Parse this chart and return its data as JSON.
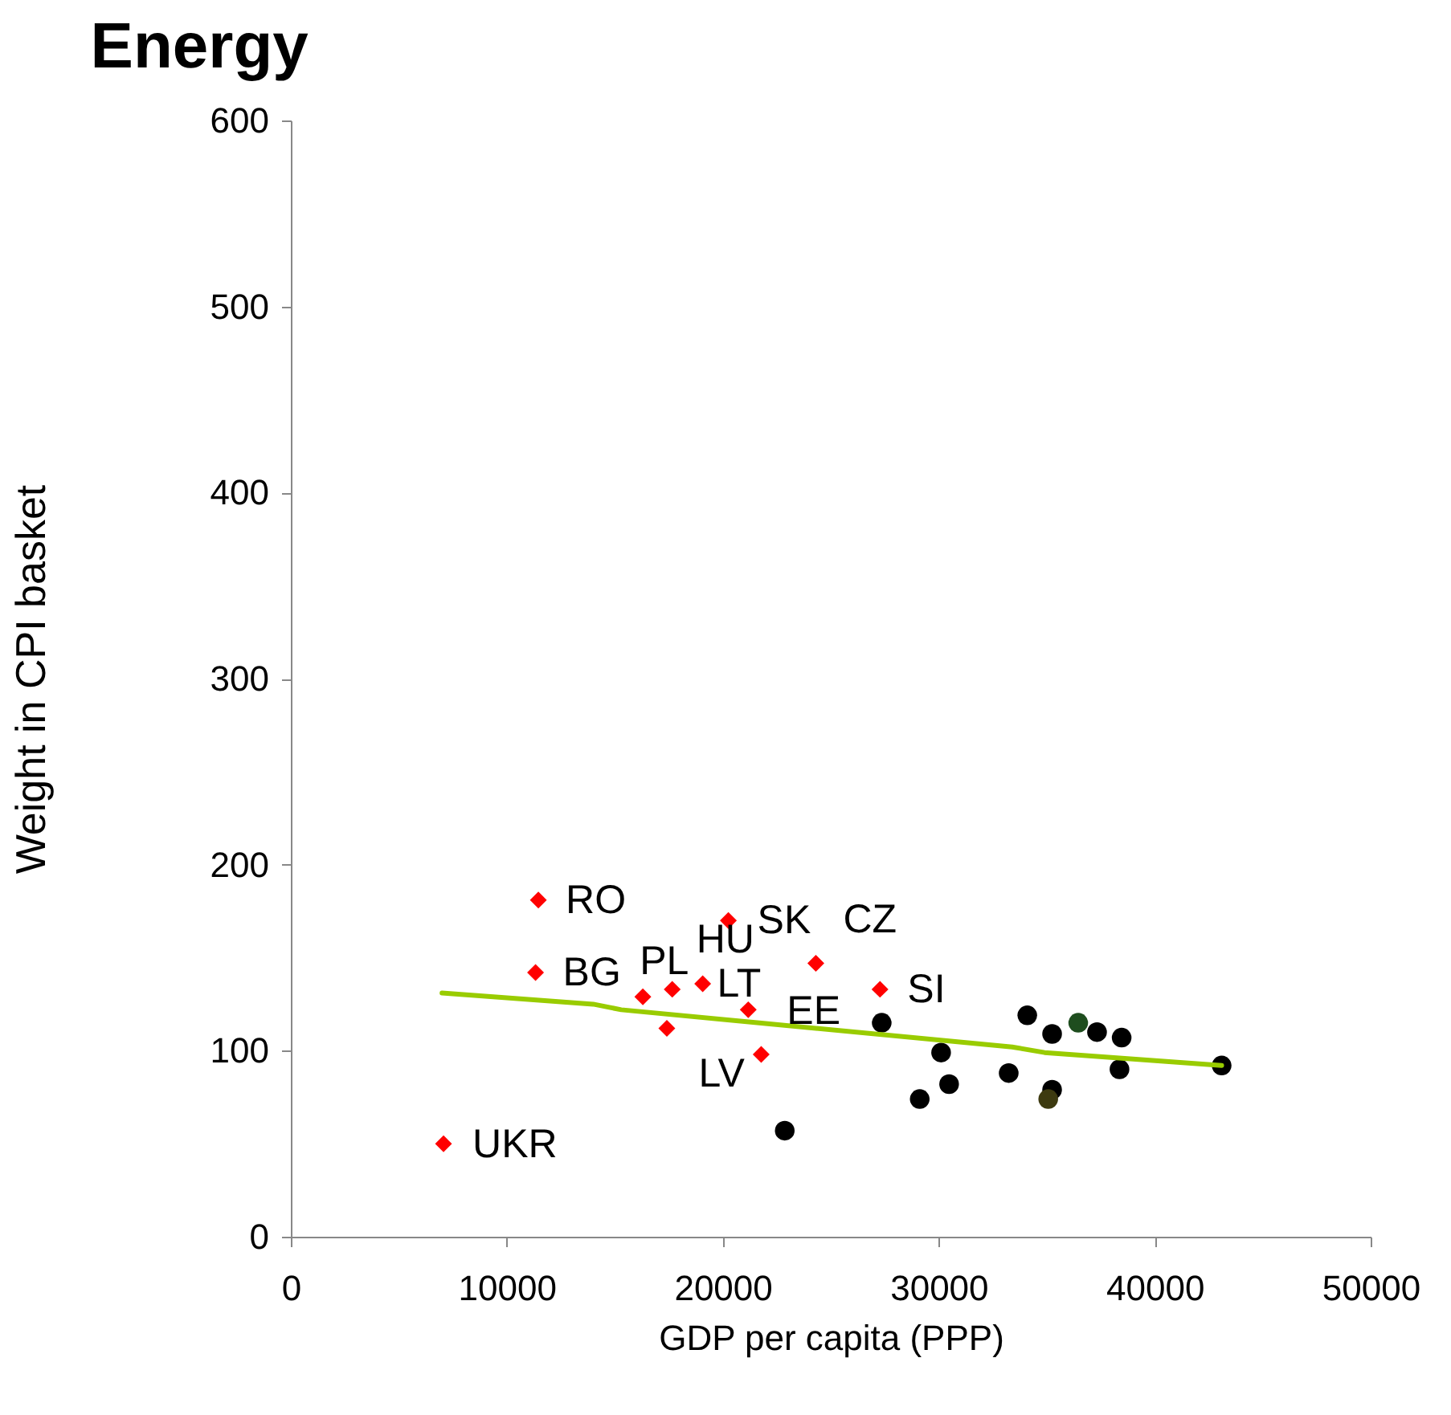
{
  "chart_data": {
    "type": "scatter",
    "title": "Energy",
    "xlabel": "GDP per capita (PPP)",
    "ylabel": "Weight in CPI basket",
    "xlim": [
      0,
      50000
    ],
    "xticks": [
      0,
      10000,
      20000,
      30000,
      40000,
      50000
    ],
    "ylim": [
      0,
      600
    ],
    "yticks": [
      0,
      100,
      200,
      300,
      400,
      500,
      600
    ],
    "grid": false,
    "series": [
      {
        "type": "scatter",
        "marker": "diamond",
        "color": "#ff0000",
        "x": [
          11460,
          11330,
          7070,
          16300,
          17660,
          17410,
          19070,
          20260,
          21180,
          21780,
          24310,
          27280
        ],
        "values": [
          181,
          142,
          50,
          129,
          133,
          112,
          136,
          170,
          122,
          98,
          147,
          133
        ]
      },
      {
        "type": "scatter",
        "marker": "circle",
        "color": "#000000",
        "colors": [
          null,
          null,
          null,
          null,
          null,
          null,
          null,
          "#1e4d1e",
          null,
          null,
          null,
          null,
          "#3d3a10",
          null,
          null
        ],
        "x": [
          27360,
          30110,
          30480,
          29120,
          22870,
          34100,
          35250,
          36460,
          37330,
          38470,
          33240,
          35250,
          35070,
          38370,
          43100
        ],
        "values": [
          115,
          99,
          82,
          74,
          57,
          119,
          109,
          115,
          110,
          107,
          88,
          79,
          74,
          90,
          92
        ]
      },
      {
        "type": "line",
        "marker": "none",
        "line_style": "solid",
        "color": "#99cc00",
        "x": [
          7000,
          14000,
          15300,
          33400,
          34900,
          43100
        ],
        "values": [
          131,
          125,
          122,
          102,
          99,
          92
        ]
      }
    ],
    "annotations": [
      {
        "text": "RO",
        "x": 11460,
        "y": 181
      },
      {
        "text": "BG",
        "x": 11330,
        "y": 142
      },
      {
        "text": "UKR",
        "x": 7070,
        "y": 49.5
      },
      {
        "text": "PL",
        "x": 16300,
        "y": 129
      },
      {
        "text": "HU",
        "x": 17660,
        "y": 133
      },
      {
        "text": "LT",
        "x": 19070,
        "y": 136
      },
      {
        "text": "SK",
        "x": 20260,
        "y": 170
      },
      {
        "text": "EE",
        "x": 21180,
        "y": 122
      },
      {
        "text": "LV",
        "x": 21780,
        "y": 98
      },
      {
        "text": "CZ",
        "x": 24310,
        "y": 147
      },
      {
        "text": "SI",
        "x": 27280,
        "y": 133
      }
    ]
  }
}
